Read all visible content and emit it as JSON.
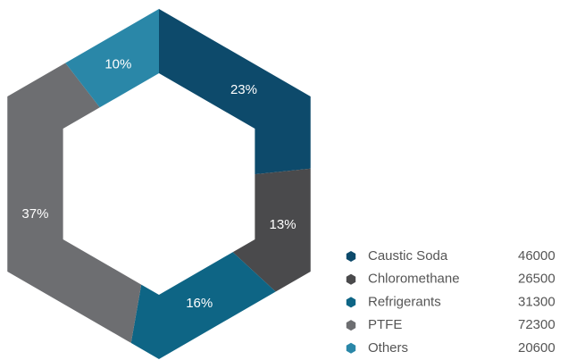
{
  "chart_data": {
    "type": "donut",
    "categories": [
      "Caustic Soda",
      "Chloromethane",
      "Refrigerants",
      "PTFE",
      "Others"
    ],
    "values": [
      46000,
      26500,
      31300,
      72300,
      20600
    ],
    "value_labels": [
      "23%",
      "13%",
      "16%",
      "37%",
      "10%"
    ],
    "colors": [
      "#0d4a6b",
      "#4a4a4c",
      "#0e6585",
      "#6d6e71",
      "#2a87a8"
    ],
    "legend": "bottom-right"
  }
}
